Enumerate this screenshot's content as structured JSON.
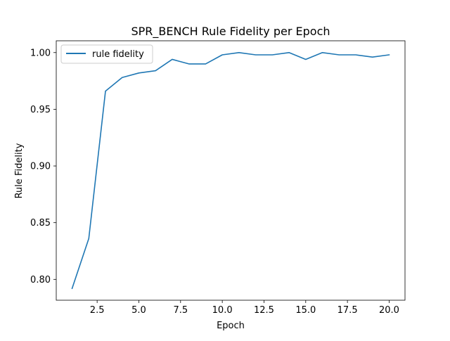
{
  "chart_data": {
    "type": "line",
    "title": "SPR_BENCH Rule Fidelity per Epoch",
    "xlabel": "Epoch",
    "ylabel": "Rule Fidelity",
    "xlim": [
      0.05,
      20.95
    ],
    "ylim": [
      0.7816,
      1.0104
    ],
    "xticks": [
      2.5,
      5.0,
      7.5,
      10.0,
      12.5,
      15.0,
      17.5,
      20.0
    ],
    "xtick_labels": [
      "2.5",
      "5.0",
      "7.5",
      "10.0",
      "12.5",
      "15.0",
      "17.5",
      "20.0"
    ],
    "yticks": [
      0.8,
      0.85,
      0.9,
      0.95,
      1.0
    ],
    "ytick_labels": [
      "0.80",
      "0.85",
      "0.90",
      "0.95",
      "1.00"
    ],
    "grid": false,
    "legend_position": "upper-left",
    "series": [
      {
        "name": "rule fidelity",
        "color": "#1f77b4",
        "x": [
          1,
          2,
          3,
          4,
          5,
          6,
          7,
          8,
          9,
          10,
          11,
          12,
          13,
          14,
          15,
          16,
          17,
          18,
          19,
          20
        ],
        "y": [
          0.792,
          0.836,
          0.966,
          0.978,
          0.982,
          0.984,
          0.994,
          0.99,
          0.99,
          0.998,
          1.0,
          0.998,
          0.998,
          1.0,
          0.994,
          1.0,
          0.998,
          0.998,
          0.996,
          0.998
        ]
      }
    ]
  }
}
